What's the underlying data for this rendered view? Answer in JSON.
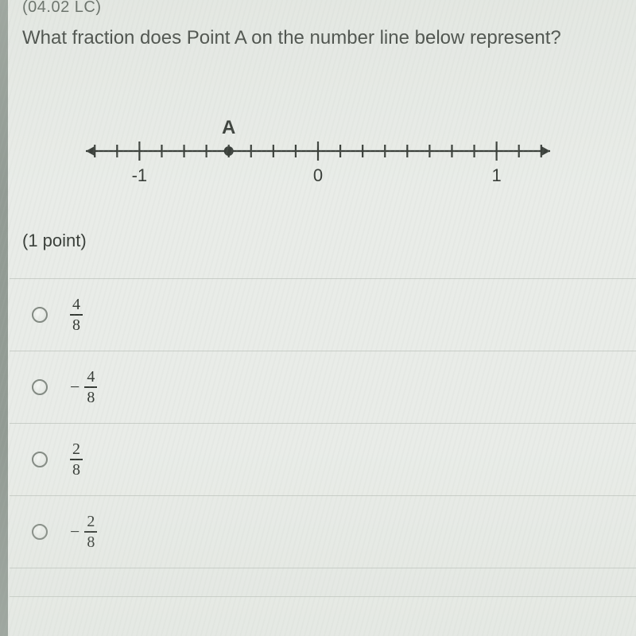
{
  "header_code": "(04.02 LC)",
  "question": "What fraction does Point A on the number line below represent?",
  "points_label": "(1 point)",
  "number_line": {
    "min": -1.3,
    "max": 1.3,
    "major_ticks": [
      -1,
      0,
      1
    ],
    "major_labels": [
      "-1",
      "0",
      "1"
    ],
    "minor_step_denom": 8,
    "point_label": "A",
    "point_value": -0.5,
    "axis_color": "#2b302b",
    "label_color": "#2b302b",
    "label_fontsize": 22,
    "point_label_fontsize": 24,
    "tick_major_half": 12,
    "tick_minor_half": 8,
    "line_width": 2.2,
    "arrow_size": 12,
    "point_radius": 6
  },
  "answers": [
    {
      "sign": "",
      "num": "4",
      "den": "8"
    },
    {
      "sign": "-",
      "num": "4",
      "den": "8"
    },
    {
      "sign": "",
      "num": "2",
      "den": "8"
    },
    {
      "sign": "-",
      "num": "2",
      "den": "8"
    }
  ],
  "colors": {
    "background": "#e9ece8",
    "text": "#2d322d",
    "divider": "#c7ccc6",
    "radio_border": "#7d847d"
  }
}
